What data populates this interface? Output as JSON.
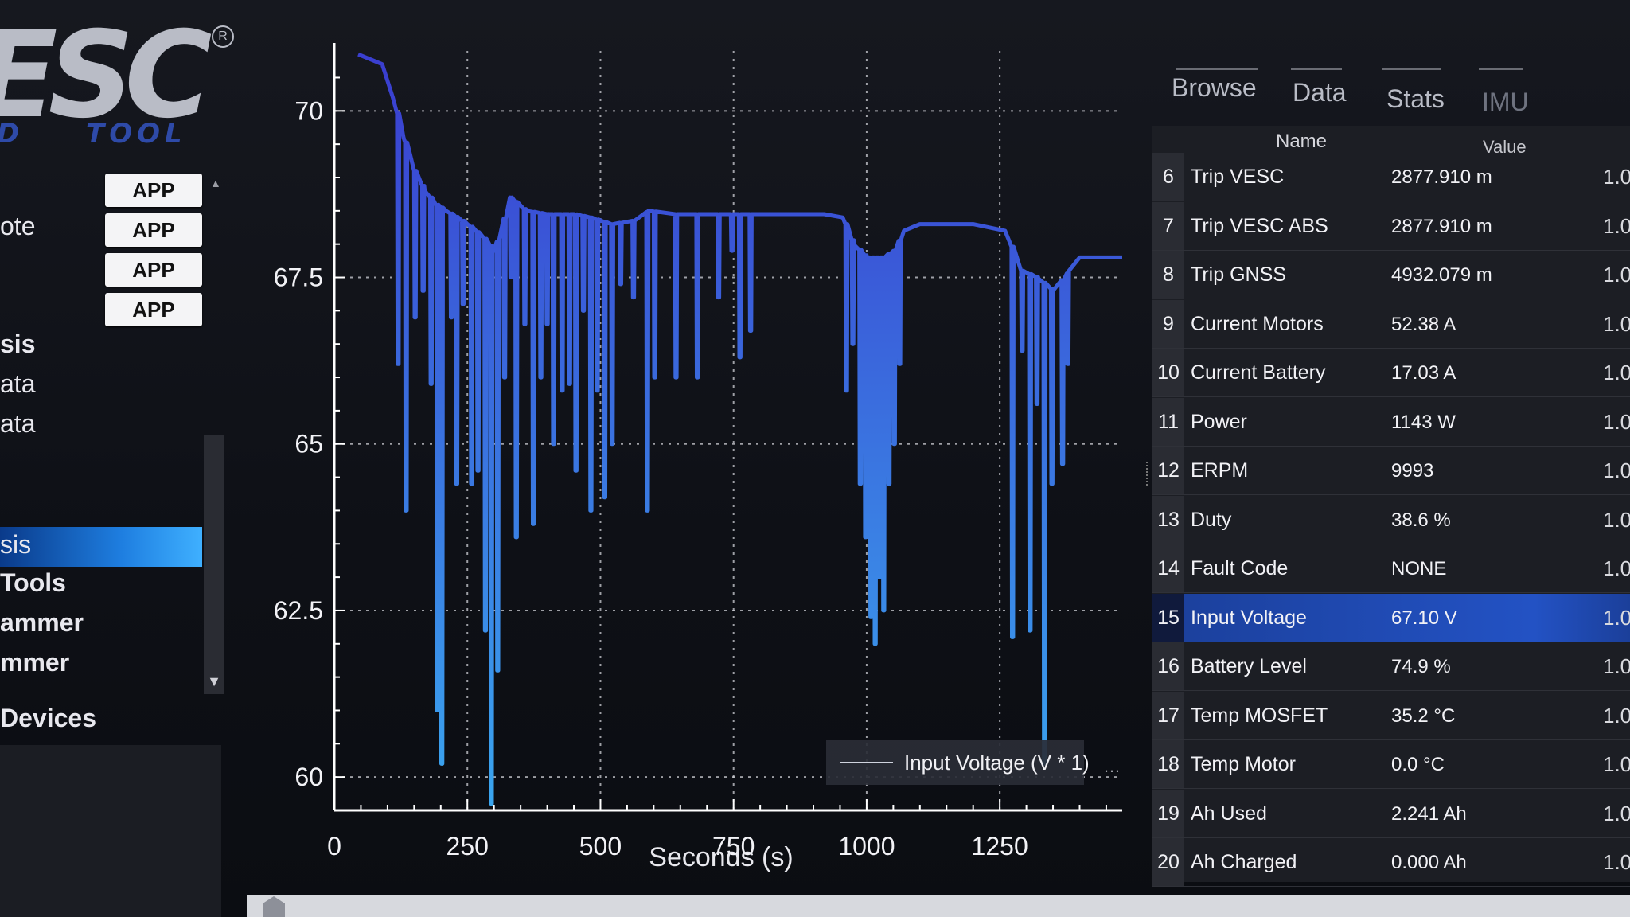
{
  "logo": {
    "main": "ESC",
    "sub_left": "D",
    "sub": "TOOL",
    "registered": "R"
  },
  "nav": {
    "app_buttons": [
      "APP",
      "APP",
      "APP",
      "APP"
    ],
    "items": [
      "ote",
      "sis",
      "ata",
      "ata",
      "sis",
      "Tools",
      "ammer",
      "mmer",
      "Devices"
    ]
  },
  "tabs": [
    "Browse",
    "Data",
    "Stats",
    "IMU"
  ],
  "table": {
    "header_name": "Name",
    "header_value": "Value",
    "rows": [
      {
        "num": "6",
        "name": "Trip VESC",
        "value": "2877.910 m",
        "scale": "1.0"
      },
      {
        "num": "7",
        "name": "Trip VESC ABS",
        "value": "2877.910 m",
        "scale": "1.0"
      },
      {
        "num": "8",
        "name": "Trip GNSS",
        "value": "4932.079 m",
        "scale": "1.0"
      },
      {
        "num": "9",
        "name": "Current Motors",
        "value": "52.38 A",
        "scale": "1.0"
      },
      {
        "num": "10",
        "name": "Current Battery",
        "value": "17.03 A",
        "scale": "1.0"
      },
      {
        "num": "11",
        "name": "Power",
        "value": "1143 W",
        "scale": "1.0"
      },
      {
        "num": "12",
        "name": "ERPM",
        "value": "9993",
        "scale": "1.0"
      },
      {
        "num": "13",
        "name": "Duty",
        "value": "38.6 %",
        "scale": "1.0"
      },
      {
        "num": "14",
        "name": "Fault Code",
        "value": "NONE",
        "scale": "1.0"
      },
      {
        "num": "15",
        "name": "Input Voltage",
        "value": "67.10 V",
        "scale": "1.0",
        "selected": true
      },
      {
        "num": "16",
        "name": "Battery Level",
        "value": "74.9 %",
        "scale": "1.0"
      },
      {
        "num": "17",
        "name": "Temp MOSFET",
        "value": "35.2 °C",
        "scale": "1.0"
      },
      {
        "num": "18",
        "name": "Temp Motor",
        "value": "0.0 °C",
        "scale": "1.0"
      },
      {
        "num": "19",
        "name": "Ah Used",
        "value": "2.241 Ah",
        "scale": "1.0"
      },
      {
        "num": "20",
        "name": "Ah Charged",
        "value": "0.000 Ah",
        "scale": "1.0"
      }
    ]
  },
  "chart_data": {
    "type": "line",
    "xlabel": "Seconds (s)",
    "xlim": [
      0,
      1480
    ],
    "ylim": [
      59.5,
      70.9
    ],
    "x_ticks": [
      0,
      250,
      500,
      750,
      1000,
      1250
    ],
    "y_ticks": [
      60,
      62.5,
      65,
      67.5,
      70
    ],
    "x_tick_labels": [
      "0",
      "250",
      "500",
      "750",
      "1000",
      "1250"
    ],
    "y_tick_labels": [
      "60",
      "62.5",
      "65",
      "67.5",
      "70"
    ],
    "grid": true,
    "legend": "bottom-right",
    "series": [
      {
        "name": "Input Voltage (V * 1)",
        "color_top": "#3a3fd0",
        "color_bottom": "#3aa8f0",
        "baseline": [
          [
            45,
            70.85
          ],
          [
            90,
            70.7
          ],
          [
            110,
            70.2
          ],
          [
            130,
            69.6
          ],
          [
            150,
            69.1
          ],
          [
            170,
            68.8
          ],
          [
            190,
            68.6
          ],
          [
            210,
            68.5
          ],
          [
            250,
            68.3
          ],
          [
            280,
            68.1
          ],
          [
            300,
            67.9
          ],
          [
            330,
            68.7
          ],
          [
            360,
            68.5
          ],
          [
            400,
            68.45
          ],
          [
            450,
            68.45
          ],
          [
            480,
            68.4
          ],
          [
            520,
            68.3
          ],
          [
            560,
            68.35
          ],
          [
            590,
            68.5
          ],
          [
            640,
            68.45
          ],
          [
            700,
            68.45
          ],
          [
            760,
            68.45
          ],
          [
            800,
            68.45
          ],
          [
            920,
            68.45
          ],
          [
            955,
            68.4
          ],
          [
            975,
            68.0
          ],
          [
            1000,
            67.8
          ],
          [
            1030,
            67.8
          ],
          [
            1050,
            67.9
          ],
          [
            1070,
            68.2
          ],
          [
            1100,
            68.3
          ],
          [
            1200,
            68.3
          ],
          [
            1260,
            68.2
          ],
          [
            1290,
            67.6
          ],
          [
            1320,
            67.5
          ],
          [
            1350,
            67.3
          ],
          [
            1380,
            67.6
          ],
          [
            1400,
            67.8
          ],
          [
            1440,
            67.8
          ],
          [
            1480,
            67.8
          ]
        ],
        "dips": [
          [
            118,
            66.2
          ],
          [
            133,
            64.0
          ],
          [
            150,
            66.9
          ],
          [
            165,
            67.3
          ],
          [
            180,
            65.9
          ],
          [
            192,
            61.0
          ],
          [
            200,
            60.2
          ],
          [
            218,
            66.9
          ],
          [
            228,
            64.4
          ],
          [
            240,
            67.1
          ],
          [
            256,
            64.4
          ],
          [
            268,
            64.6
          ],
          [
            282,
            62.2
          ],
          [
            293,
            59.6
          ],
          [
            305,
            61.6
          ],
          [
            318,
            66.0
          ],
          [
            330,
            67.5
          ],
          [
            340,
            63.6
          ],
          [
            356,
            66.8
          ],
          [
            372,
            63.8
          ],
          [
            386,
            66.0
          ],
          [
            398,
            66.8
          ],
          [
            410,
            65.0
          ],
          [
            426,
            65.8
          ],
          [
            440,
            65.9
          ],
          [
            452,
            64.6
          ],
          [
            466,
            67.0
          ],
          [
            480,
            64.0
          ],
          [
            492,
            65.8
          ],
          [
            506,
            64.2
          ],
          [
            520,
            65.0
          ],
          [
            536,
            67.4
          ],
          [
            560,
            67.2
          ],
          [
            586,
            64.0
          ],
          [
            600,
            66.0
          ],
          [
            640,
            66.0
          ],
          [
            680,
            66.0
          ],
          [
            720,
            67.2
          ],
          [
            745,
            67.9
          ],
          [
            760,
            66.3
          ],
          [
            780,
            66.7
          ],
          [
            960,
            65.8
          ],
          [
            972,
            66.5
          ],
          [
            986,
            64.4
          ],
          [
            996,
            63.6
          ],
          [
            1006,
            62.4
          ],
          [
            1014,
            62.0
          ],
          [
            1022,
            63.0
          ],
          [
            1030,
            62.5
          ],
          [
            1040,
            64.4
          ],
          [
            1050,
            65.0
          ],
          [
            1060,
            66.2
          ],
          [
            1272,
            62.1
          ],
          [
            1290,
            66.4
          ],
          [
            1305,
            62.2
          ],
          [
            1318,
            65.6
          ],
          [
            1332,
            60.2
          ],
          [
            1346,
            64.4
          ],
          [
            1366,
            64.7
          ],
          [
            1376,
            66.2
          ]
        ]
      }
    ]
  }
}
